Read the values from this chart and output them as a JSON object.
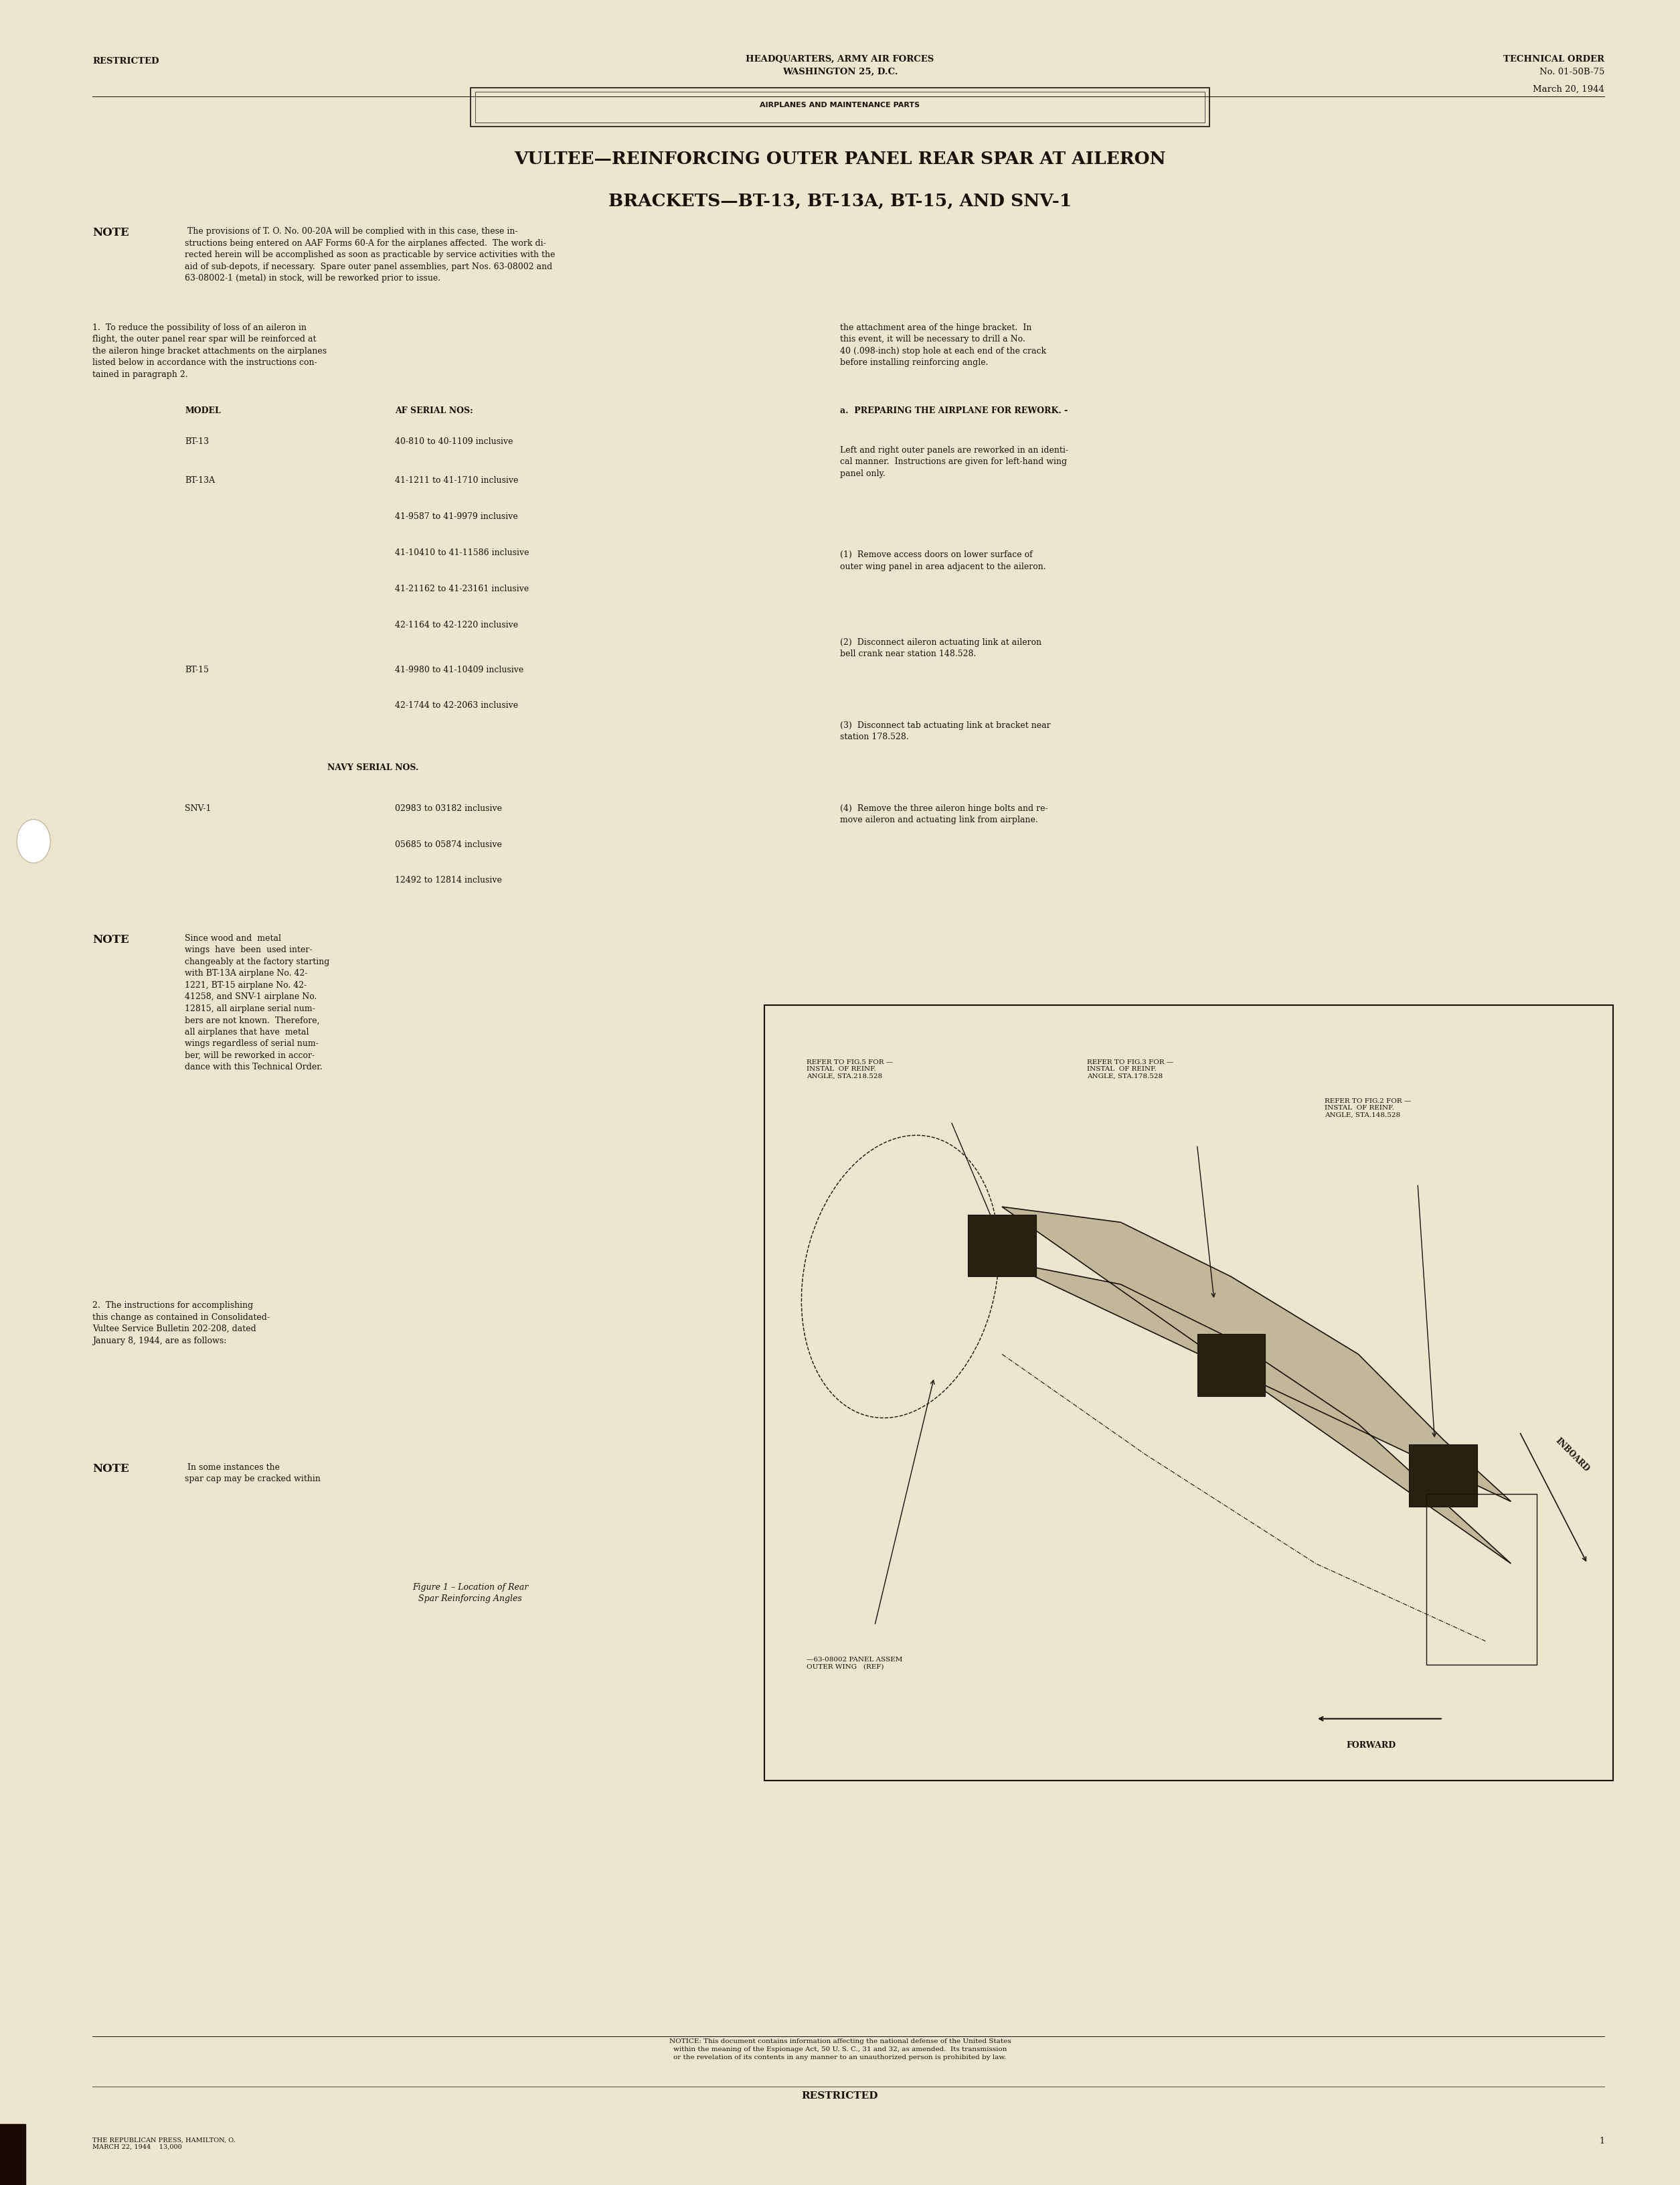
{
  "bg_color": "#ede5ce",
  "text_color": "#1a1008",
  "page_width": 25.1,
  "page_height": 32.63,
  "header_restricted": "RESTRICTED",
  "header_center_line1": "HEADQUARTERS, ARMY AIR FORCES",
  "header_center_line2": "WASHINGTON 25, D.C.",
  "header_right_line1": "TECHNICAL ORDER",
  "header_right_line2": "No. 01-50B-75",
  "header_date": "March 20, 1944",
  "category_box_text": "AIRPLANES AND MAINTENANCE PARTS",
  "main_title_line1": "VULTEE—REINFORCING OUTER PANEL REAR SPAR AT AILERON",
  "main_title_line2": "BRACKETS—BT-13, BT-13A, BT-15, AND SNV-1",
  "note1_bold": "NOTE",
  "note1_text": " The provisions of T. O. No. 00-20A will be complied with in this case, these in-\nstructions being entered on AAF Forms 60-A for the airplanes affected.  The work di-\nrected herein will be accomplished as soon as practicable by service activities with the\naid of sub-depots, if necessary.  Spare outer panel assemblies, part Nos. 63-08002 and\n63-08002-1 (metal) in stock, will be reworked prior to issue.",
  "para1_left": "1.  To reduce the possibility of loss of an aileron in\nflight, the outer panel rear spar will be reinforced at\nthe aileron hinge bracket attachments on the airplanes\nlisted below in accordance with the instructions con-\ntained in paragraph 2.",
  "para1_right": "the attachment area of the hinge bracket.  In\nthis event, it will be necessary to drill a No.\n40 (.098-inch) stop hole at each end of the crack\nbefore installing reinforcing angle.",
  "model_header": "MODEL",
  "af_header": "AF SERIAL NOS:",
  "bt13_model": "BT-13",
  "bt13_serials": "40-810 to 40-1109 inclusive",
  "bt13a_model": "BT-13A",
  "bt13a_serials": [
    "41-1211 to 41-1710 inclusive",
    "41-9587 to 41-9979 inclusive",
    "41-10410 to 41-11586 inclusive",
    "41-21162 to 41-23161 inclusive",
    "42-1164 to 42-1220 inclusive"
  ],
  "bt15_model": "BT-15",
  "bt15_serials": [
    "41-9980 to 41-10409 inclusive",
    "42-1744 to 42-2063 inclusive"
  ],
  "navy_header": "NAVY SERIAL NOS.",
  "snv1_model": "SNV-1",
  "snv1_serials": [
    "02983 to 03182 inclusive",
    "05685 to 05874 inclusive",
    "12492 to 12814 inclusive"
  ],
  "note2_bold": "NOTE",
  "note2_text": "Since wood and  metal\nwings  have  been  used inter-\nchangeably at the factory starting\nwith BT-13A airplane No. 42-\n1221, BT-15 airplane No. 42-\n41258, and SNV-1 airplane No.\n12815, all airplane serial num-\nbers are not known.  Therefore,\nall airplanes that have  metal\nwings regardless of serial num-\nber, will be reworked in accor-\ndance with this Technical Order.",
  "para_a_header": "a.  PREPARING THE AIRPLANE FOR REWORK. -",
  "para_a_text": "Left and right outer panels are reworked in an identi-\ncal manner.  Instructions are given for left-hand wing\npanel only.",
  "para_1_text": "(1)  Remove access doors on lower surface of\nouter wing panel in area adjacent to the aileron.",
  "para_2_text": "(2)  Disconnect aileron actuating link at aileron\nbell crank near station 148.528.",
  "para_3_text": "(3)  Disconnect tab actuating link at bracket near\nstation 178.528.",
  "para_4_text": "(4)  Remove the three aileron hinge bolts and re-\nmove aileron and actuating link from airplane.",
  "para2_text": "2.  The instructions for accomplishing\nthis change as contained in Consolidated-\nVultee Service Bulletin 202-208, dated\nJanuary 8, 1944, are as follows:",
  "note3_bold": "NOTE",
  "note3_text": " In some instances the\nspar cap may be cracked within",
  "fig_caption": "Figure 1 – Location of Rear\nSpar Reinforcing Angles",
  "fig_label1": "REFER TO FIG.5 FOR —\nINSTAL  OF REINF.\nANGLE, STA.218.528",
  "fig_label2": "REFER TO FIG.3 FOR —\nINSTAL  OF REINF.\nANGLE, STA.178.528",
  "fig_label3": "REFER TO FIG.2 FOR —\nINSTAL  OF REINF.\nANGLE, STA.148.528",
  "fig_label4": "—63-08002 PANEL ASSEM\nOUTER WING   (REF)",
  "fig_label5": "INBOARD",
  "fig_label6": "FORWARD",
  "footer_notice": "NOTICE: This document contains information affecting the national defense of the United States\nwithin the meaning of the Espionage Act, 50 U. S. C., 31 and 32, as amended.  Its transmission\nor the revelation of its contents in any manner to an unauthorized person is prohibited by law.",
  "footer_restricted": "RESTRICTED",
  "footer_publisher": "THE REPUBLICAN PRESS, HAMILTON, O.\nMARCH 22, 1944    13,000",
  "footer_page": "1"
}
